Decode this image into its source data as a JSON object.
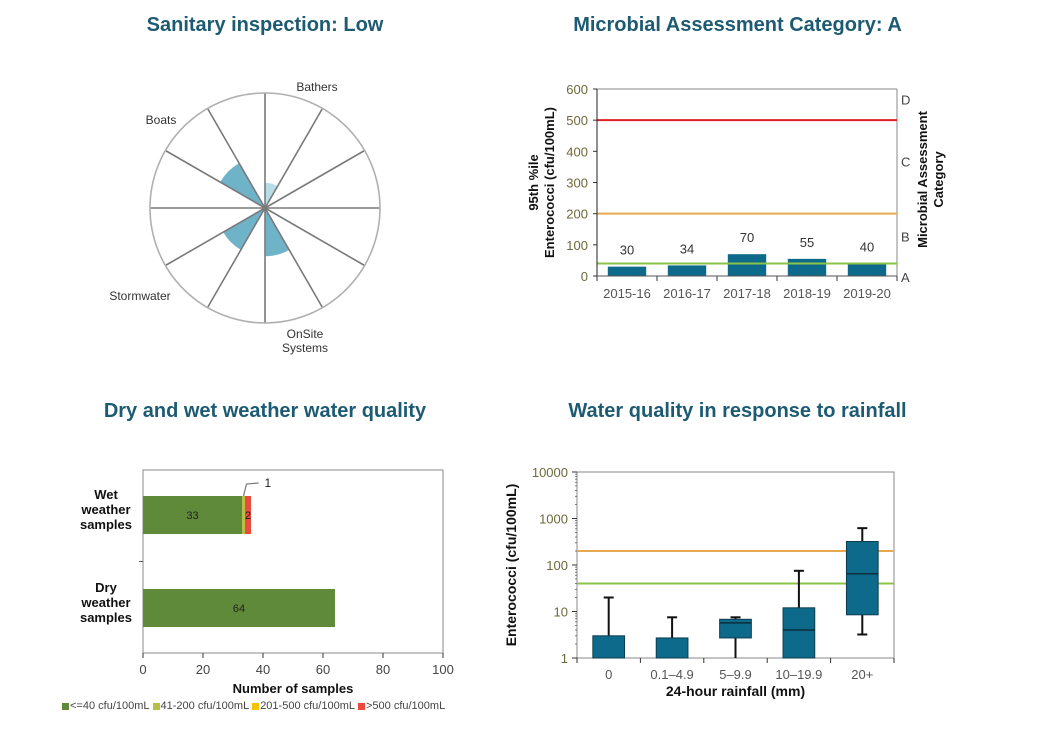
{
  "colors": {
    "title": "#1d5b73",
    "bar": "#0e6a8a",
    "wedge": "#6fb3c8",
    "wedge_light": "#b9dde8",
    "line_red": "#e01f26",
    "line_orange": "#e6a94d",
    "line_green": "#8bc34a",
    "tick_olive": "#6b6a3a",
    "seg_green": "#5e8a3a",
    "seg_yellowgreen": "#b5bf48",
    "seg_yellow": "#f5c400",
    "seg_red": "#ea4b3c"
  },
  "chart_data": [
    {
      "id": "sanitary",
      "type": "polar",
      "title": "Sanitary inspection: Low",
      "spokes": 12,
      "labels": [
        "Bathers",
        "Boats",
        "Stormwater",
        "OnSite Systems"
      ],
      "series": [
        {
          "name": "Bathers",
          "start_deg": 0,
          "end_deg": 30,
          "value": 0.22,
          "shade": "light"
        },
        {
          "name": "OnSite Systems",
          "start_deg": 150,
          "end_deg": 180,
          "value": 0.42,
          "shade": "normal"
        },
        {
          "name": "Stormwater",
          "start_deg": 210,
          "end_deg": 240,
          "value": 0.42,
          "shade": "normal"
        },
        {
          "name": "Boats",
          "start_deg": 300,
          "end_deg": 330,
          "value": 0.45,
          "shade": "normal"
        }
      ]
    },
    {
      "id": "mac",
      "type": "bar",
      "title": "Microbial Assessment Category: A",
      "categories": [
        "2015-16",
        "2016-17",
        "2017-18",
        "2018-19",
        "2019-20"
      ],
      "values": [
        30,
        34,
        70,
        55,
        40
      ],
      "ylabel_line1": "95th %ile",
      "ylabel_line2": "Enterococci (cfu/100mL)",
      "ylim": [
        0,
        600
      ],
      "yticks": [
        0,
        100,
        200,
        300,
        400,
        500,
        600
      ],
      "y2label_line1": "Microbial Assessment",
      "y2label_line2": "Category",
      "y2_categories": [
        {
          "label": "A",
          "at": 0
        },
        {
          "label": "B",
          "at": 130
        },
        {
          "label": "C",
          "at": 370
        },
        {
          "label": "D",
          "at": 570
        }
      ],
      "thresholds": [
        {
          "value": 500,
          "color": "red"
        },
        {
          "value": 200,
          "color": "orange"
        },
        {
          "value": 40,
          "color": "green"
        }
      ]
    },
    {
      "id": "drywet",
      "type": "stacked-bar-horizontal",
      "title": "Dry and wet weather water quality",
      "categories": [
        "Wet weather samples",
        "Dry weather samples"
      ],
      "category_lines": [
        [
          "Wet",
          "weather",
          "samples"
        ],
        [
          "Dry",
          "weather",
          "samples"
        ]
      ],
      "series": [
        {
          "name": "<=40 cfu/100mL",
          "values": [
            33,
            64
          ],
          "color": "green"
        },
        {
          "name": "41-200 cfu/100mL",
          "values": [
            1,
            0
          ],
          "color": "yellowgreen"
        },
        {
          "name": "201-500 cfu/100mL",
          "values": [
            0,
            0
          ],
          "color": "yellow"
        },
        {
          "name": ">500 cfu/100mL",
          "values": [
            2,
            0
          ],
          "color": "red"
        }
      ],
      "xlabel": "Number of samples",
      "xlim": [
        0,
        100
      ],
      "xticks": [
        0,
        20,
        40,
        60,
        80,
        100
      ],
      "callout": "1",
      "legend_position": "bottom"
    },
    {
      "id": "rainfall",
      "type": "boxplot",
      "title": "Water quality in response to rainfall",
      "categories": [
        "0",
        "0.1–4.9",
        "5–9.9",
        "10–19.9",
        "20+"
      ],
      "boxes": [
        {
          "min": 1,
          "q1": 1,
          "median": 1,
          "q3": 3,
          "max": 20
        },
        {
          "min": 1,
          "q1": 1,
          "median": 1,
          "q3": 2.7,
          "max": 7.5
        },
        {
          "min": 1,
          "q1": 2.7,
          "median": 5.7,
          "q3": 6.8,
          "max": 7.5
        },
        {
          "min": 1,
          "q1": 1,
          "median": 4,
          "q3": 12,
          "max": 75
        },
        {
          "min": 3.2,
          "q1": 8.5,
          "median": 65,
          "q3": 320,
          "max": 620
        }
      ],
      "ylabel": "Enterococci (cfu/100mL)",
      "xlabel": "24-hour rainfall (mm)",
      "yscale": "log",
      "ylim": [
        1,
        10000
      ],
      "yticks": [
        1,
        10,
        100,
        1000,
        10000
      ],
      "thresholds": [
        {
          "value": 200,
          "color": "orange"
        },
        {
          "value": 40,
          "color": "green"
        }
      ]
    }
  ]
}
